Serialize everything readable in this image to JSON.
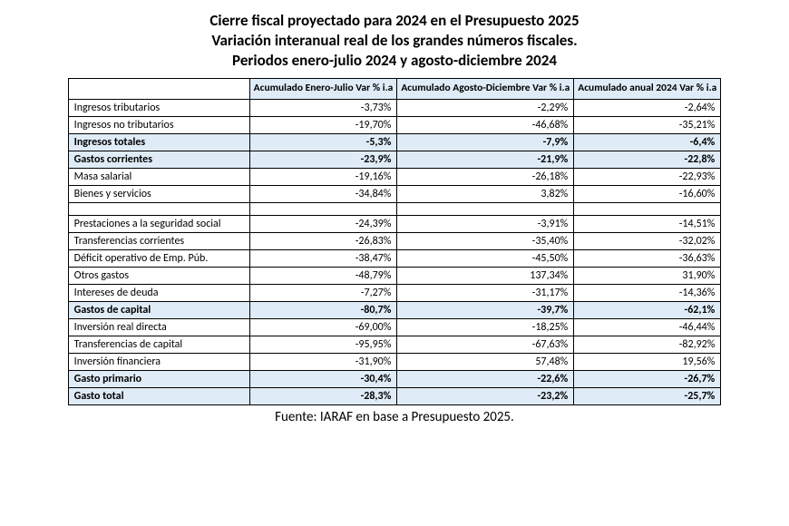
{
  "title": {
    "line1": "Cierre fiscal proyectado para 2024 en el Presupuesto 2025",
    "line2": "Variación interanual real de los grandes números fiscales.",
    "line3": "Periodos enero-julio 2024 y agosto-diciembre 2024"
  },
  "columns": {
    "c1": "Acumulado Enero-Julio Var % i.a",
    "c2": "Acumulado Agosto-Diciembre Var % i.a",
    "c3": "Acumulado anual 2024 Var % i.a"
  },
  "rows": [
    {
      "label": "Ingresos tributarios",
      "c1": "-3,73%",
      "c2": "-2,29%",
      "c3": "-2,64%",
      "hl": false
    },
    {
      "label": "Ingresos no tributarios",
      "c1": "-19,70%",
      "c2": "-46,68%",
      "c3": "-35,21%",
      "hl": false
    },
    {
      "label": "Ingresos totales",
      "c1": "-5,3%",
      "c2": "-7,9%",
      "c3": "-6,4%",
      "hl": true
    },
    {
      "label": "Gastos corrientes",
      "c1": "-23,9%",
      "c2": "-21,9%",
      "c3": "-22,8%",
      "hl": true
    },
    {
      "label": "Masa salarial",
      "c1": "-19,16%",
      "c2": "-26,18%",
      "c3": "-22,93%",
      "hl": false
    },
    {
      "label": "Bienes y servicios",
      "c1": "-34,84%",
      "c2": "3,82%",
      "c3": "-16,60%",
      "hl": false
    },
    {
      "spacer": true
    },
    {
      "label": "Prestaciones a la seguridad social",
      "c1": "-24,39%",
      "c2": "-3,91%",
      "c3": "-14,51%",
      "hl": false
    },
    {
      "label": "Transferencias corrientes",
      "c1": "-26,83%",
      "c2": "-35,40%",
      "c3": "-32,02%",
      "hl": false
    },
    {
      "label": "Déficit operativo de Emp. Púb.",
      "c1": "-38,47%",
      "c2": "-45,50%",
      "c3": "-36,63%",
      "hl": false
    },
    {
      "label": "Otros gastos",
      "c1": "-48,79%",
      "c2": "137,34%",
      "c3": "31,90%",
      "hl": false
    },
    {
      "label": "Intereses de deuda",
      "c1": "-7,27%",
      "c2": "-31,17%",
      "c3": "-14,36%",
      "hl": false
    },
    {
      "label": "Gastos de capital",
      "c1": "-80,7%",
      "c2": "-39,7%",
      "c3": "-62,1%",
      "hl": true
    },
    {
      "label": "Inversión real directa",
      "c1": "-69,00%",
      "c2": "-18,25%",
      "c3": "-46,44%",
      "hl": false
    },
    {
      "label": "Transferencias de capital",
      "c1": "-95,95%",
      "c2": "-67,63%",
      "c3": "-82,92%",
      "hl": false
    },
    {
      "label": "Inversión financiera",
      "c1": "-31,90%",
      "c2": "57,48%",
      "c3": "19,56%",
      "hl": false
    },
    {
      "label": "Gasto primario",
      "c1": "-30,4%",
      "c2": "-22,6%",
      "c3": "-26,7%",
      "hl": true
    },
    {
      "label": "Gasto total",
      "c1": "-28,3%",
      "c2": "-23,2%",
      "c3": "-25,7%",
      "hl": true
    }
  ],
  "source": "Fuente: IARAF en base a Presupuesto 2025.",
  "style": {
    "highlight_bg": "#dfecf7",
    "border_color": "#000000",
    "title_fontsize": 17,
    "body_fontsize": 12
  }
}
